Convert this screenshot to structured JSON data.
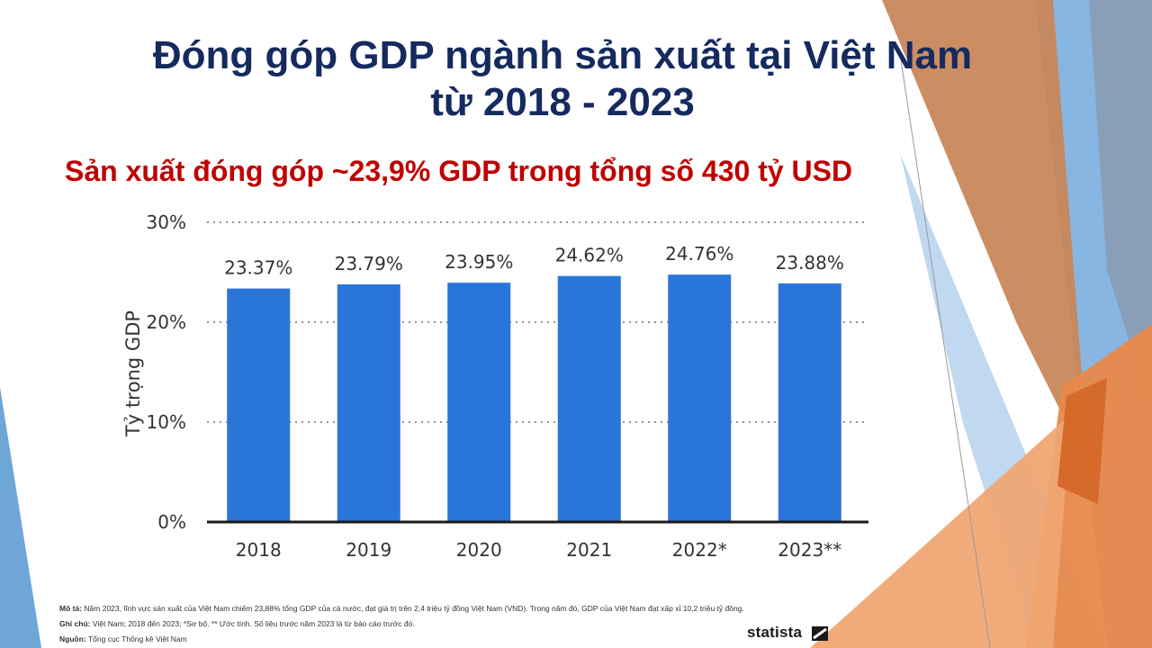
{
  "title_line1": "Đóng góp GDP ngành sản xuất tại Việt Nam",
  "title_line2": "từ 2018 - 2023",
  "subtitle": "Sản xuất đóng góp ~23,9% GDP trong tổng số 430 tỷ USD",
  "chart_data": {
    "type": "bar",
    "categories": [
      "2018",
      "2019",
      "2020",
      "2021",
      "2022*",
      "2023**"
    ],
    "values": [
      23.37,
      23.79,
      23.95,
      24.62,
      24.76,
      23.88
    ],
    "data_labels": [
      "23.37%",
      "23.79%",
      "23.95%",
      "24.62%",
      "24.76%",
      "23.88%"
    ],
    "ylabel": "Tỷ trọng GDP",
    "ylim": [
      0,
      30
    ],
    "yticks": [
      0,
      10,
      20,
      30
    ],
    "ytick_labels": [
      "0%",
      "10%",
      "20%",
      "30%"
    ],
    "grid": true,
    "bar_color": "#2a75d9"
  },
  "footer": {
    "desc_label": "Mô tả:",
    "desc_text": "Năm 2023, lĩnh vực sản xuất của Việt Nam chiếm 23,88% tổng GDP của cả nước, đạt giá trị trên 2,4 triệu tỷ đồng Việt Nam (VND). Trong năm đó, GDP của Việt Nam đạt xấp xỉ 10,2 triệu tỷ đồng.",
    "note_label": "Ghi chú:",
    "note_text": "Việt Nam; 2018 đến 2023; *Sơ bộ. ** Ước tính. Số liệu trước năm 2023 là từ báo cáo trước đó.",
    "source_label": "Nguồn:",
    "source_text": "Tổng cục Thống kê Việt Nam"
  },
  "brand": "statista",
  "colors": {
    "title": "#152a5e",
    "subtitle": "#c00000",
    "orange": "#e07b3a",
    "blue": "#5b9bd5"
  }
}
